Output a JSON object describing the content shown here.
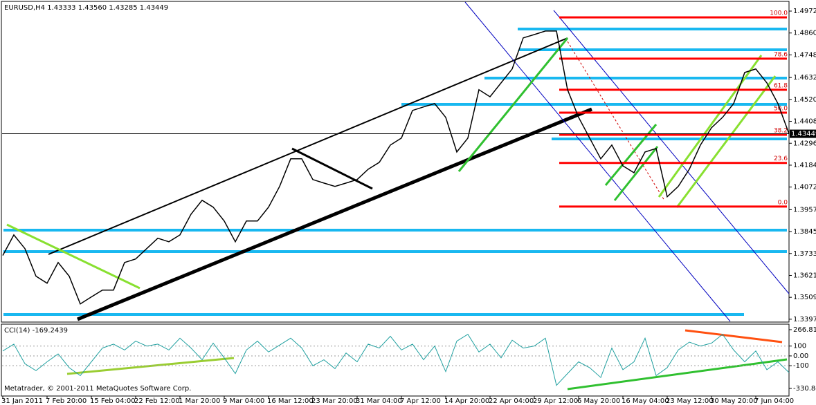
{
  "chart_data": [
    {
      "type": "line",
      "title": "EURUSD,H4  1.43333 1.43560 1.43285 1.43449",
      "categories": [
        "31 Jan 2011",
        null,
        null,
        null,
        "7 Feb 20:00",
        null,
        null,
        null,
        "15 Feb 04:00",
        null,
        null,
        null,
        "22 Feb 12:00",
        null,
        null,
        null,
        "1 Mar 20:00",
        null,
        null,
        null,
        "9 Mar 04:00",
        null,
        null,
        null,
        "16 Mar 12:00",
        null,
        null,
        null,
        "23 Mar 20:00",
        null,
        null,
        null,
        "31 Mar 04:00",
        null,
        null,
        null,
        "7 Apr 12:00",
        null,
        null,
        null,
        "14 Apr 20:00",
        null,
        null,
        null,
        "22 Apr 04:00",
        null,
        null,
        null,
        "29 Apr 12:00",
        null,
        null,
        null,
        "6 May 20:00",
        null,
        null,
        null,
        "16 May 04:00",
        null,
        null,
        null,
        "23 May 12:00",
        null,
        null,
        null,
        "30 May 20:00",
        null,
        null,
        null,
        "7 Jun 04:00",
        null,
        null,
        null
      ],
      "series": [
        {
          "name": "EURUSD",
          "color": "#000000",
          "values": [
            1.3723,
            1.3828,
            1.3758,
            1.3617,
            1.3581,
            1.3687,
            1.3617,
            1.3475,
            1.3511,
            1.3546,
            1.3546,
            1.3687,
            1.3705,
            1.3758,
            1.3811,
            1.3793,
            1.3828,
            1.3934,
            1.4005,
            1.397,
            1.3899,
            1.3793,
            1.3899,
            1.3899,
            1.397,
            1.4076,
            1.4217,
            1.4217,
            1.4111,
            1.4093,
            1.4076,
            1.4093,
            1.4111,
            1.4164,
            1.4199,
            1.4287,
            1.4323,
            1.4464,
            1.4482,
            1.4499,
            1.4429,
            1.4252,
            1.4323,
            1.457,
            1.4534,
            1.4605,
            1.4676,
            1.4835,
            1.4852,
            1.487,
            1.487,
            1.457,
            1.4429,
            1.4323,
            1.4217,
            1.4287,
            1.4181,
            1.4146,
            1.4252,
            1.427,
            1.4023,
            1.4076,
            1.4164,
            1.4287,
            1.4376,
            1.4429,
            1.4499,
            1.4658,
            1.4676,
            1.4605,
            1.4499,
            1.4345
          ]
        }
      ],
      "ylim": [
        1.3386,
        1.5011
      ],
      "yticks": [
        {
          "value": 1.4972,
          "label": "1.49720"
        },
        {
          "value": 1.486,
          "label": "1.48600"
        },
        {
          "value": 1.4748,
          "label": "1.47480"
        },
        {
          "value": 1.46325,
          "label": "1.46325"
        },
        {
          "value": 1.45205,
          "label": "1.45205"
        },
        {
          "value": 1.44085,
          "label": "1.44085"
        },
        {
          "value": 1.42965,
          "label": "1.42965"
        },
        {
          "value": 1.41845,
          "label": "1.41845"
        },
        {
          "value": 1.40725,
          "label": "1.40725"
        },
        {
          "value": 1.3957,
          "label": "1.39570"
        },
        {
          "value": 1.3845,
          "label": "1.38450"
        },
        {
          "value": 1.3733,
          "label": "1.37330"
        },
        {
          "value": 1.3621,
          "label": "1.36210"
        },
        {
          "value": 1.3509,
          "label": "1.35090"
        },
        {
          "value": 1.3397,
          "label": "1.33970"
        }
      ],
      "last_price": 1.43449,
      "fib_levels": [
        {
          "text": "100.0",
          "price": 1.494
        },
        {
          "text": "78.6",
          "price": 1.4729
        },
        {
          "text": "61.8",
          "price": 1.457
        },
        {
          "text": "50.0",
          "price": 1.4453
        },
        {
          "text": "38.2",
          "price": 1.434
        },
        {
          "text": "23.6",
          "price": 1.4196
        },
        {
          "text": "0.0",
          "price": 1.3973
        }
      ],
      "footer": "Metatrader, © 2001-2011 MetaQuotes Software Corp."
    },
    {
      "type": "line",
      "title": "CCI(14) -169.2439",
      "series": [
        {
          "name": "CCI(14)",
          "color": "#20a0a0",
          "values": [
            50,
            120,
            -80,
            -150,
            -60,
            20,
            -120,
            -200,
            -60,
            80,
            120,
            60,
            150,
            100,
            120,
            60,
            180,
            80,
            -40,
            130,
            -20,
            -180,
            60,
            150,
            40,
            110,
            180,
            80,
            -100,
            -40,
            -130,
            30,
            -60,
            120,
            80,
            200,
            60,
            120,
            -40,
            100,
            -160,
            150,
            220,
            40,
            120,
            -20,
            160,
            80,
            100,
            180,
            -300,
            -180,
            -60,
            -120,
            -220,
            80,
            -140,
            -60,
            180,
            -200,
            -120,
            60,
            140,
            100,
            130,
            220,
            60,
            -60,
            50,
            -140,
            -60,
            -169.2439
          ]
        }
      ],
      "ylim": [
        -330.845,
        266.819
      ],
      "yticks": [
        266.819,
        100,
        {
          "value": 0,
          "label": "0.00"
        },
        -100,
        -330.845
      ]
    }
  ]
}
